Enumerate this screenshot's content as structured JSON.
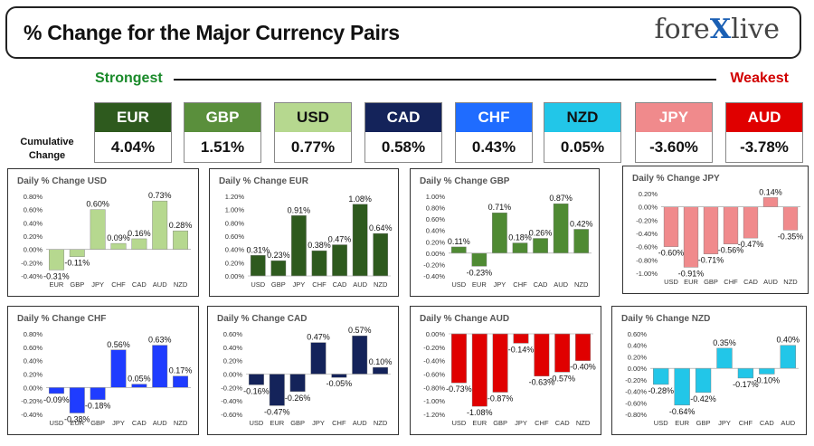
{
  "header": {
    "title": "% Change for the Major Currency Pairs",
    "logo_left": "fore",
    "logo_x": "X",
    "logo_right": "live"
  },
  "scale": {
    "strongest": "Strongest",
    "weakest": "Weakest"
  },
  "cumulative_label": "Cumulative Change",
  "tiles": [
    {
      "currency": "EUR",
      "value": "4.04%",
      "bg": "#2e5a1e",
      "fg": "#ffffff"
    },
    {
      "currency": "GBP",
      "value": "1.51%",
      "bg": "#5a8f3c",
      "fg": "#ffffff"
    },
    {
      "currency": "USD",
      "value": "0.77%",
      "bg": "#b6d88f",
      "fg": "#111111"
    },
    {
      "currency": "CAD",
      "value": "0.58%",
      "bg": "#14235a",
      "fg": "#ffffff"
    },
    {
      "currency": "CHF",
      "value": "0.43%",
      "bg": "#1f6cff",
      "fg": "#ffffff"
    },
    {
      "currency": "NZD",
      "value": "0.05%",
      "bg": "#22c6e8",
      "fg": "#111111"
    },
    {
      "currency": "JPY",
      "value": "-3.60%",
      "bg": "#f08a8c",
      "fg": "#ffffff"
    },
    {
      "currency": "AUD",
      "value": "-3.78%",
      "bg": "#e00000",
      "fg": "#ffffff"
    }
  ],
  "chart_data": [
    {
      "type": "bar",
      "title": "Daily % Change USD",
      "categories": [
        "EUR",
        "GBP",
        "JPY",
        "CHF",
        "CAD",
        "AUD",
        "NZD"
      ],
      "values": [
        -0.31,
        -0.11,
        0.6,
        0.09,
        0.16,
        0.73,
        0.28
      ],
      "labels": [
        "-0.31%",
        "-0.11%",
        "0.60%",
        "0.09%",
        "0.16%",
        "0.73%",
        "0.28%"
      ],
      "ylim": [
        -0.4,
        0.8
      ],
      "ticks": [
        -0.4,
        -0.2,
        0.0,
        0.2,
        0.4,
        0.6,
        0.8
      ],
      "tick_labels": [
        "-0.40%",
        "-0.20%",
        "0.00%",
        "0.20%",
        "0.40%",
        "0.60%",
        "0.80%"
      ],
      "color": "#b6d88f"
    },
    {
      "type": "bar",
      "title": "Daily % Change EUR",
      "categories": [
        "USD",
        "GBP",
        "JPY",
        "CHF",
        "CAD",
        "AUD",
        "NZD"
      ],
      "values": [
        0.31,
        0.23,
        0.91,
        0.38,
        0.47,
        1.08,
        0.64
      ],
      "labels": [
        "0.31%",
        "0.23%",
        "0.91%",
        "0.38%",
        "0.47%",
        "1.08%",
        "0.64%"
      ],
      "ylim": [
        0.0,
        1.2
      ],
      "ticks": [
        0.0,
        0.2,
        0.4,
        0.6,
        0.8,
        1.0,
        1.2
      ],
      "tick_labels": [
        "0.00%",
        "0.20%",
        "0.40%",
        "0.60%",
        "0.80%",
        "1.00%",
        "1.20%"
      ],
      "color": "#2e5a1e"
    },
    {
      "type": "bar",
      "title": "Daily % Change GBP",
      "categories": [
        "USD",
        "EUR",
        "JPY",
        "CHF",
        "CAD",
        "AUD",
        "NZD"
      ],
      "values": [
        0.11,
        -0.23,
        0.71,
        0.18,
        0.26,
        0.87,
        0.42
      ],
      "labels": [
        "0.11%",
        "-0.23%",
        "0.71%",
        "0.18%",
        "0.26%",
        "0.87%",
        "0.42%"
      ],
      "ylim": [
        -0.4,
        1.0
      ],
      "ticks": [
        -0.4,
        -0.2,
        0.0,
        0.2,
        0.4,
        0.6,
        0.8,
        1.0
      ],
      "tick_labels": [
        "-0.40%",
        "-0.20%",
        "0.00%",
        "0.20%",
        "0.40%",
        "0.60%",
        "0.80%",
        "1.00%"
      ],
      "color": "#4f8a33"
    },
    {
      "type": "bar",
      "title": "Daily % Change JPY",
      "categories": [
        "USD",
        "EUR",
        "GBP",
        "CHF",
        "CAD",
        "AUD",
        "NZD"
      ],
      "values": [
        -0.6,
        -0.91,
        -0.71,
        -0.56,
        -0.47,
        0.14,
        -0.35
      ],
      "labels": [
        "-0.60%",
        "-0.91%",
        "-0.71%",
        "-0.56%",
        "-0.47%",
        "0.14%",
        "-0.35%"
      ],
      "ylim": [
        -1.0,
        0.2
      ],
      "ticks": [
        -1.0,
        -0.8,
        -0.6,
        -0.4,
        -0.2,
        0.0,
        0.2
      ],
      "tick_labels": [
        "-1.00%",
        "-0.80%",
        "-0.60%",
        "-0.40%",
        "-0.20%",
        "0.00%",
        "0.20%"
      ],
      "color": "#f08a8c"
    },
    {
      "type": "bar",
      "title": "Daily % Change CHF",
      "categories": [
        "USD",
        "EUR",
        "GBP",
        "JPY",
        "CAD",
        "AUD",
        "NZD"
      ],
      "values": [
        -0.09,
        -0.38,
        -0.18,
        0.56,
        0.05,
        0.63,
        0.17
      ],
      "labels": [
        "-0.09%",
        "-0.38%",
        "-0.18%",
        "0.56%",
        "0.05%",
        "0.63%",
        "0.17%"
      ],
      "ylim": [
        -0.4,
        0.8
      ],
      "ticks": [
        -0.4,
        -0.2,
        0.0,
        0.2,
        0.4,
        0.6,
        0.8
      ],
      "tick_labels": [
        "-0.40%",
        "-0.20%",
        "0.00%",
        "0.20%",
        "0.40%",
        "0.60%",
        "0.80%"
      ],
      "color": "#1f3cff"
    },
    {
      "type": "bar",
      "title": "Daily % Change CAD",
      "categories": [
        "USD",
        "EUR",
        "GBP",
        "JPY",
        "CHF",
        "AUD",
        "NZD"
      ],
      "values": [
        -0.16,
        -0.47,
        -0.26,
        0.47,
        -0.05,
        0.57,
        0.1
      ],
      "labels": [
        "-0.16%",
        "-0.47%",
        "-0.26%",
        "0.47%",
        "-0.05%",
        "0.57%",
        "0.10%"
      ],
      "ylim": [
        -0.6,
        0.6
      ],
      "ticks": [
        -0.6,
        -0.4,
        -0.2,
        0.0,
        0.2,
        0.4,
        0.6
      ],
      "tick_labels": [
        "-0.60%",
        "-0.40%",
        "-0.20%",
        "0.00%",
        "0.20%",
        "0.40%",
        "0.60%"
      ],
      "color": "#14235a"
    },
    {
      "type": "bar",
      "title": "Daily % Change AUD",
      "categories": [
        "USD",
        "EUR",
        "GBP",
        "JPY",
        "CHF",
        "CAD",
        "NZD"
      ],
      "values": [
        -0.73,
        -1.08,
        -0.87,
        -0.14,
        -0.63,
        -0.57,
        -0.4
      ],
      "labels": [
        "-0.73%",
        "-1.08%",
        "-0.87%",
        "-0.14%",
        "-0.63%",
        "-0.57%",
        "-0.40%"
      ],
      "ylim": [
        -1.2,
        0.0
      ],
      "ticks": [
        -1.2,
        -1.0,
        -0.8,
        -0.6,
        -0.4,
        -0.2,
        0.0
      ],
      "tick_labels": [
        "-1.20%",
        "-1.00%",
        "-0.80%",
        "-0.60%",
        "-0.40%",
        "-0.20%",
        "0.00%"
      ],
      "color": "#e00000"
    },
    {
      "type": "bar",
      "title": "Daily % Change NZD",
      "categories": [
        "USD",
        "EUR",
        "GBP",
        "JPY",
        "CHF",
        "CAD",
        "AUD"
      ],
      "values": [
        -0.28,
        -0.64,
        -0.42,
        0.35,
        -0.17,
        -0.1,
        0.4
      ],
      "labels": [
        "-0.28%",
        "-0.64%",
        "-0.42%",
        "0.35%",
        "-0.17%",
        "-0.10%",
        "0.40%"
      ],
      "ylim": [
        -0.8,
        0.6
      ],
      "ticks": [
        -0.8,
        -0.6,
        -0.4,
        -0.2,
        0.0,
        0.2,
        0.4,
        0.6
      ],
      "tick_labels": [
        "-0.80%",
        "-0.60%",
        "-0.40%",
        "-0.20%",
        "0.00%",
        "0.20%",
        "0.40%",
        "0.60%"
      ],
      "color": "#22c6e8"
    }
  ]
}
